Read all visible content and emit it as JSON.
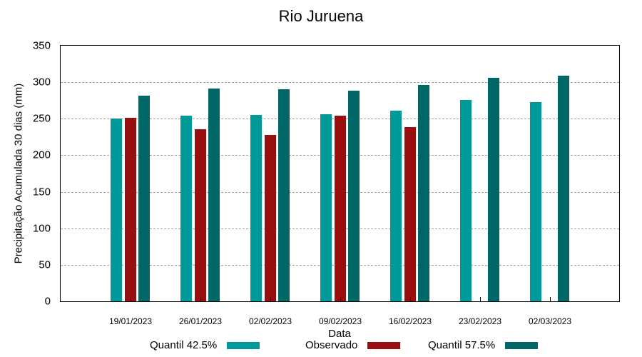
{
  "chart_data": {
    "type": "bar",
    "title": "Rio Juruena",
    "xlabel": "Data",
    "ylabel": "Precipitação Acumulada 30 dias (mm)",
    "ylim": [
      0,
      350
    ],
    "yticks": [
      0,
      50,
      100,
      150,
      200,
      250,
      300,
      350
    ],
    "grid": true,
    "legend_position": "bottom",
    "categories": [
      "19/01/2023",
      "26/01/2023",
      "02/02/2023",
      "09/02/2023",
      "16/02/2023",
      "23/02/2023",
      "02/03/2023"
    ],
    "series": [
      {
        "name": "Quantil 42.5%",
        "color": "#009999",
        "values": [
          250,
          254,
          255,
          256,
          261,
          276,
          273
        ]
      },
      {
        "name": "Observado",
        "color": "#990f0f",
        "values": [
          251,
          236,
          228,
          254,
          239,
          null,
          null
        ]
      },
      {
        "name": "Quantil 57.5%",
        "color": "#006666",
        "values": [
          282,
          291,
          290,
          288,
          296,
          306,
          309
        ]
      }
    ]
  }
}
